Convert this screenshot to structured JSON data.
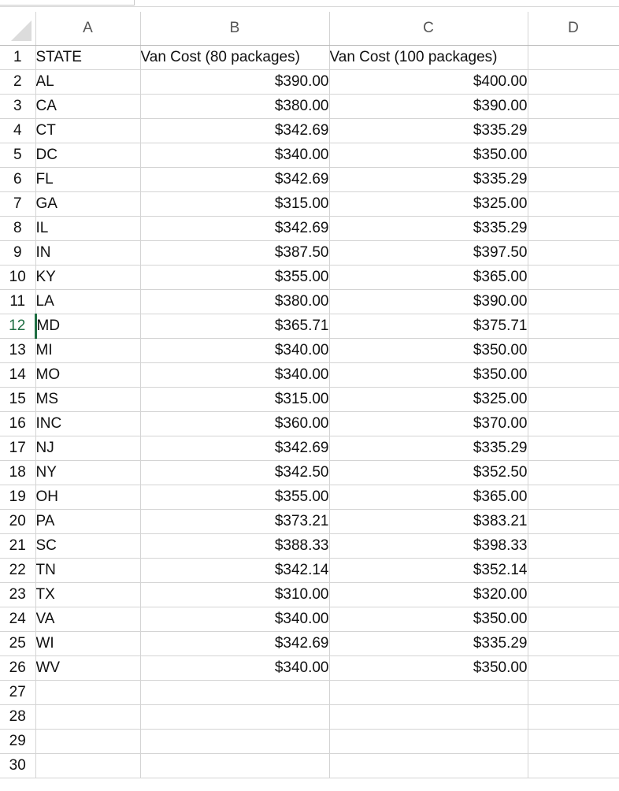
{
  "column_headers": [
    "A",
    "B",
    "C",
    "D"
  ],
  "row_numbers": [
    "1",
    "2",
    "3",
    "4",
    "5",
    "6",
    "7",
    "8",
    "9",
    "10",
    "11",
    "12",
    "13",
    "14",
    "15",
    "16",
    "17",
    "18",
    "19",
    "20",
    "21",
    "22",
    "23",
    "24",
    "25",
    "26",
    "27",
    "28",
    "29",
    "30"
  ],
  "active_row": "12",
  "header_row": [
    "STATE",
    "Van Cost (80 packages)",
    "Van Cost (100 packages)",
    ""
  ],
  "rows": [
    [
      "AL",
      "$390.00",
      "$400.00"
    ],
    [
      "CA",
      "$380.00",
      "$390.00"
    ],
    [
      "CT",
      "$342.69",
      "$335.29"
    ],
    [
      "DC",
      "$340.00",
      "$350.00"
    ],
    [
      "FL",
      "$342.69",
      "$335.29"
    ],
    [
      "GA",
      "$315.00",
      "$325.00"
    ],
    [
      "IL",
      "$342.69",
      "$335.29"
    ],
    [
      "IN",
      "$387.50",
      "$397.50"
    ],
    [
      "KY",
      "$355.00",
      "$365.00"
    ],
    [
      "LA",
      "$380.00",
      "$390.00"
    ],
    [
      "MD",
      "$365.71",
      "$375.71"
    ],
    [
      "MI",
      "$340.00",
      "$350.00"
    ],
    [
      "MO",
      "$340.00",
      "$350.00"
    ],
    [
      "MS",
      "$315.00",
      "$325.00"
    ],
    [
      "INC",
      "$360.00",
      "$370.00"
    ],
    [
      "NJ",
      "$342.69",
      "$335.29"
    ],
    [
      "NY",
      "$342.50",
      "$352.50"
    ],
    [
      "OH",
      "$355.00",
      "$365.00"
    ],
    [
      "PA",
      "$373.21",
      "$383.21"
    ],
    [
      "SC",
      "$388.33",
      "$398.33"
    ],
    [
      "TN",
      "$342.14",
      "$352.14"
    ],
    [
      "TX",
      "$310.00",
      "$320.00"
    ],
    [
      "VA",
      "$340.00",
      "$350.00"
    ],
    [
      "WI",
      "$342.69",
      "$335.29"
    ],
    [
      "WV",
      "$340.00",
      "$350.00"
    ]
  ],
  "colors": {
    "grid": "#d4d4d4",
    "active_accent": "#1f6e43",
    "header_text": "#555555"
  }
}
